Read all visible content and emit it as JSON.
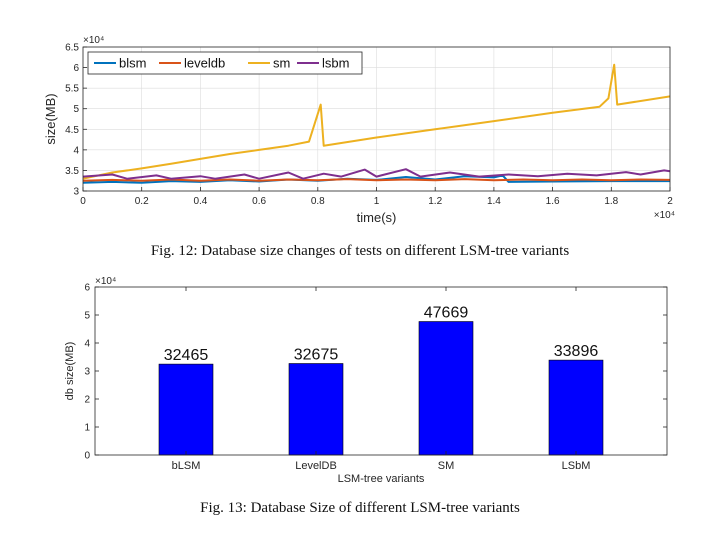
{
  "captions": {
    "fig12": "Fig. 12: Database size changes of tests on different LSM-tree variants",
    "fig13": "Fig. 13: Database Size of different LSM-tree variants"
  },
  "chart_data": [
    {
      "type": "line",
      "title": "",
      "xlabel": "time(s)",
      "ylabel": "size(MB)",
      "x_multiplier": "×10⁴",
      "y_multiplier": "×10⁴",
      "xlim": [
        0,
        2
      ],
      "ylim": [
        3,
        6.5
      ],
      "x_ticks": [
        "0",
        "0.2",
        "0.4",
        "0.6",
        "0.8",
        "1",
        "1.2",
        "1.4",
        "1.6",
        "1.8",
        "2"
      ],
      "y_ticks": [
        "3",
        "3.5",
        "4",
        "4.5",
        "5",
        "5.5",
        "6",
        "6.5"
      ],
      "grid": true,
      "legend_position": "top-left",
      "series": [
        {
          "name": "blsm",
          "color": "#0072bd",
          "points": [
            [
              0,
              3.2
            ],
            [
              0.1,
              3.22
            ],
            [
              0.2,
              3.2
            ],
            [
              0.3,
              3.24
            ],
            [
              0.4,
              3.22
            ],
            [
              0.5,
              3.26
            ],
            [
              0.6,
              3.23
            ],
            [
              0.7,
              3.28
            ],
            [
              0.8,
              3.25
            ],
            [
              0.9,
              3.3
            ],
            [
              1.0,
              3.27
            ],
            [
              1.1,
              3.34
            ],
            [
              1.2,
              3.28
            ],
            [
              1.3,
              3.36
            ],
            [
              1.4,
              3.33
            ],
            [
              1.43,
              3.38
            ],
            [
              1.45,
              3.22
            ],
            [
              1.6,
              3.23
            ],
            [
              1.8,
              3.24
            ],
            [
              2.0,
              3.24
            ]
          ]
        },
        {
          "name": "leveldb",
          "color": "#d95319",
          "points": [
            [
              0,
              3.25
            ],
            [
              0.1,
              3.27
            ],
            [
              0.2,
              3.25
            ],
            [
              0.3,
              3.28
            ],
            [
              0.4,
              3.25
            ],
            [
              0.5,
              3.28
            ],
            [
              0.6,
              3.25
            ],
            [
              0.7,
              3.28
            ],
            [
              0.8,
              3.26
            ],
            [
              0.9,
              3.29
            ],
            [
              1.0,
              3.26
            ],
            [
              1.1,
              3.28
            ],
            [
              1.2,
              3.26
            ],
            [
              1.3,
              3.29
            ],
            [
              1.4,
              3.26
            ],
            [
              1.5,
              3.28
            ],
            [
              1.6,
              3.26
            ],
            [
              1.7,
              3.28
            ],
            [
              1.8,
              3.26
            ],
            [
              1.9,
              3.28
            ],
            [
              2.0,
              3.27
            ]
          ]
        },
        {
          "name": "sm",
          "color": "#edb120",
          "points": [
            [
              0,
              3.3
            ],
            [
              0.1,
              3.45
            ],
            [
              0.2,
              3.55
            ],
            [
              0.3,
              3.66
            ],
            [
              0.4,
              3.78
            ],
            [
              0.5,
              3.9
            ],
            [
              0.6,
              4.0
            ],
            [
              0.7,
              4.1
            ],
            [
              0.77,
              4.2
            ],
            [
              0.81,
              5.1
            ],
            [
              0.82,
              4.1
            ],
            [
              1.0,
              4.3
            ],
            [
              1.2,
              4.5
            ],
            [
              1.4,
              4.7
            ],
            [
              1.6,
              4.9
            ],
            [
              1.76,
              5.05
            ],
            [
              1.79,
              5.25
            ],
            [
              1.81,
              6.07
            ],
            [
              1.82,
              5.1
            ],
            [
              2.0,
              5.3
            ]
          ]
        },
        {
          "name": "lsbm",
          "color": "#7e2f8e",
          "points": [
            [
              0,
              3.35
            ],
            [
              0.1,
              3.4
            ],
            [
              0.15,
              3.3
            ],
            [
              0.25,
              3.38
            ],
            [
              0.3,
              3.3
            ],
            [
              0.4,
              3.36
            ],
            [
              0.45,
              3.3
            ],
            [
              0.55,
              3.4
            ],
            [
              0.6,
              3.3
            ],
            [
              0.7,
              3.45
            ],
            [
              0.75,
              3.3
            ],
            [
              0.82,
              3.42
            ],
            [
              0.88,
              3.35
            ],
            [
              0.96,
              3.52
            ],
            [
              1.0,
              3.35
            ],
            [
              1.1,
              3.53
            ],
            [
              1.15,
              3.35
            ],
            [
              1.25,
              3.45
            ],
            [
              1.35,
              3.35
            ],
            [
              1.45,
              3.4
            ],
            [
              1.55,
              3.36
            ],
            [
              1.65,
              3.42
            ],
            [
              1.75,
              3.38
            ],
            [
              1.85,
              3.46
            ],
            [
              1.9,
              3.4
            ],
            [
              1.98,
              3.5
            ],
            [
              2.0,
              3.48
            ]
          ]
        }
      ]
    },
    {
      "type": "bar",
      "title": "",
      "xlabel": "LSM-tree variants",
      "ylabel": "db size(MB)",
      "y_multiplier": "×10⁴",
      "ylim": [
        0,
        6
      ],
      "y_ticks": [
        "0",
        "1",
        "2",
        "3",
        "4",
        "5",
        "6"
      ],
      "categories": [
        "bLSM",
        "LevelDB",
        "SM",
        "LSbM"
      ],
      "values": [
        32465,
        32675,
        47669,
        33896
      ],
      "data_labels": [
        "32465",
        "32675",
        "47669",
        "33896"
      ],
      "bar_color": "#0000ff",
      "grid": false
    }
  ]
}
